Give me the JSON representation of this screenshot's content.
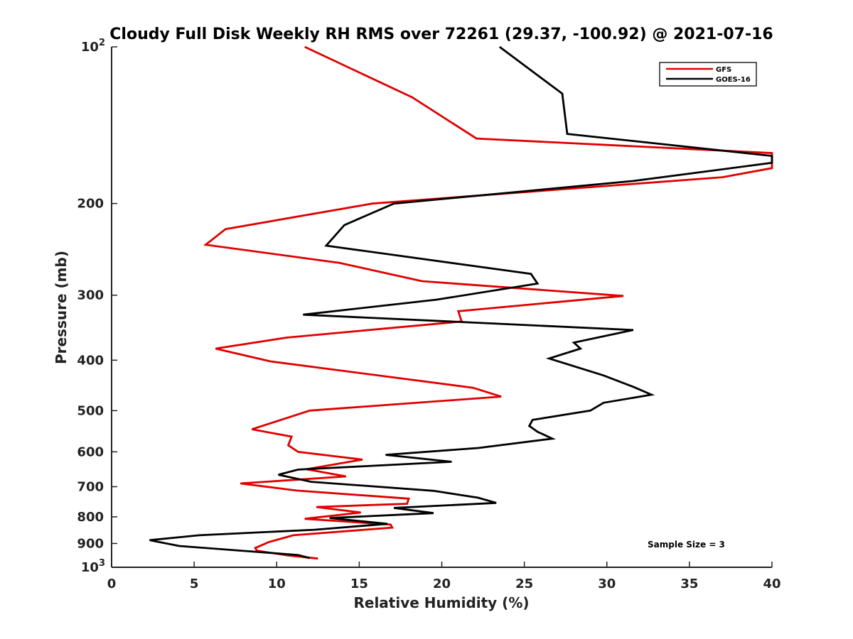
{
  "chart_data": {
    "type": "line",
    "title": "Cloudy Full Disk Weekly RH RMS over 72261 (29.37, -100.92) @ 2021-07-16",
    "xlabel": "Relative Humidity (%)",
    "ylabel": "Pressure (mb)",
    "xlim": [
      0,
      40
    ],
    "ylim": [
      100,
      1000
    ],
    "yscale": "log",
    "y_reversed": true,
    "grid": false,
    "legend_position": "top-right",
    "annotation": "Sample Size = 3",
    "x_ticks": [
      {
        "value": 0,
        "label": "0"
      },
      {
        "value": 5,
        "label": "5"
      },
      {
        "value": 10,
        "label": "10"
      },
      {
        "value": 15,
        "label": "15"
      },
      {
        "value": 20,
        "label": "20"
      },
      {
        "value": 25,
        "label": "25"
      },
      {
        "value": 30,
        "label": "30"
      },
      {
        "value": 35,
        "label": "35"
      },
      {
        "value": 40,
        "label": "40"
      }
    ],
    "y_ticks": [
      {
        "value": 100,
        "label": "10",
        "sup": "2"
      },
      {
        "value": 200,
        "label": "200"
      },
      {
        "value": 300,
        "label": "300"
      },
      {
        "value": 400,
        "label": "400"
      },
      {
        "value": 500,
        "label": "500"
      },
      {
        "value": 600,
        "label": "600"
      },
      {
        "value": 700,
        "label": "700"
      },
      {
        "value": 800,
        "label": "800"
      },
      {
        "value": 900,
        "label": "900"
      },
      {
        "value": 1000,
        "label": "10",
        "sup": "3"
      }
    ],
    "series": [
      {
        "name": "GFS",
        "color": "#e00000",
        "points": [
          [
            11.7,
            100
          ],
          [
            18.2,
            125
          ],
          [
            22.1,
            150
          ],
          [
            40.0,
            160
          ],
          [
            40.0,
            171
          ],
          [
            37.0,
            178
          ],
          [
            15.8,
            200
          ],
          [
            6.9,
            224
          ],
          [
            5.7,
            240
          ],
          [
            13.8,
            260
          ],
          [
            18.8,
            282
          ],
          [
            31.0,
            301
          ],
          [
            21.0,
            322
          ],
          [
            21.2,
            337
          ],
          [
            10.6,
            362
          ],
          [
            6.3,
            380
          ],
          [
            9.6,
            402
          ],
          [
            21.9,
            452
          ],
          [
            23.6,
            470
          ],
          [
            12.0,
            500
          ],
          [
            10.5,
            518
          ],
          [
            8.5,
            543
          ],
          [
            10.9,
            561
          ],
          [
            10.7,
            583
          ],
          [
            11.3,
            600
          ],
          [
            15.2,
            621
          ],
          [
            11.8,
            648
          ],
          [
            14.2,
            669
          ],
          [
            7.8,
            690
          ],
          [
            11.2,
            712
          ],
          [
            18.0,
            738
          ],
          [
            17.9,
            755
          ],
          [
            12.4,
            766
          ],
          [
            15.1,
            785
          ],
          [
            11.7,
            807
          ],
          [
            16.9,
            828
          ],
          [
            17.0,
            839
          ],
          [
            11.0,
            868
          ],
          [
            9.5,
            895
          ],
          [
            8.7,
            918
          ],
          [
            8.8,
            929
          ],
          [
            10.7,
            949
          ],
          [
            12.5,
            962
          ]
        ]
      },
      {
        "name": "GOES-16",
        "color": "#000000",
        "points": [
          [
            23.5,
            100
          ],
          [
            27.3,
            123
          ],
          [
            27.6,
            147
          ],
          [
            40.0,
            162
          ],
          [
            40.0,
            167
          ],
          [
            31.6,
            181
          ],
          [
            17.1,
            200
          ],
          [
            14.1,
            220
          ],
          [
            13.0,
            241
          ],
          [
            25.4,
            273
          ],
          [
            25.8,
            285
          ],
          [
            19.7,
            306
          ],
          [
            11.6,
            327
          ],
          [
            31.6,
            350
          ],
          [
            28.0,
            370
          ],
          [
            28.4,
            380
          ],
          [
            26.5,
            397
          ],
          [
            29.8,
            428
          ],
          [
            31.6,
            450
          ],
          [
            32.7,
            466
          ],
          [
            29.8,
            483
          ],
          [
            29.0,
            500
          ],
          [
            25.5,
            521
          ],
          [
            25.3,
            535
          ],
          [
            25.8,
            549
          ],
          [
            26.7,
            566
          ],
          [
            22.2,
            590
          ],
          [
            16.6,
            608
          ],
          [
            20.6,
            627
          ],
          [
            11.3,
            649
          ],
          [
            10.1,
            664
          ],
          [
            12.1,
            685
          ],
          [
            19.5,
            713
          ],
          [
            22.2,
            735
          ],
          [
            23.3,
            752
          ],
          [
            17.1,
            769
          ],
          [
            19.5,
            787
          ],
          [
            13.2,
            804
          ],
          [
            16.7,
            825
          ],
          [
            12.3,
            847
          ],
          [
            5.3,
            868
          ],
          [
            2.3,
            887
          ],
          [
            4.1,
            910
          ],
          [
            11.3,
            947
          ],
          [
            12.0,
            960
          ]
        ]
      }
    ]
  }
}
